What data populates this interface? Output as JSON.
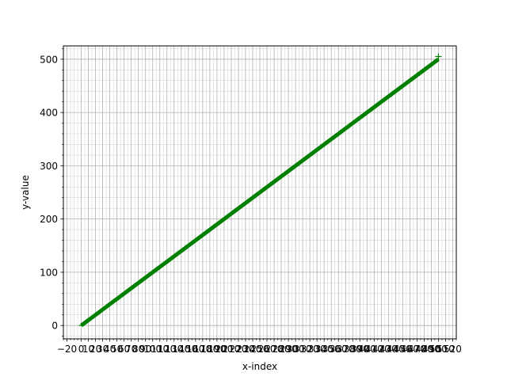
{
  "chart_data": {
    "type": "line",
    "title": "",
    "xlabel": "x-index",
    "ylabel": "y-value",
    "xlim": [
      -25,
      525
    ],
    "ylim": [
      -25,
      525
    ],
    "x_major_ticks": [
      -20,
      0,
      10,
      20,
      30,
      40,
      50,
      60,
      70,
      80,
      90,
      100,
      110,
      120,
      130,
      140,
      150,
      160,
      170,
      180,
      190,
      200,
      210,
      220,
      230,
      240,
      250,
      260,
      270,
      280,
      290,
      300,
      310,
      320,
      330,
      340,
      350,
      360,
      370,
      380,
      390,
      400,
      410,
      420,
      430,
      440,
      450,
      460,
      470,
      480,
      490,
      500,
      510,
      520
    ],
    "x_tick_labels": [
      "-20",
      "0",
      "10",
      "20",
      "30",
      "40",
      "50",
      "60",
      "70",
      "80",
      "90",
      "100",
      "110",
      "120",
      "130",
      "140",
      "150",
      "160",
      "170",
      "180",
      "190",
      "200",
      "210",
      "220",
      "230",
      "240",
      "250",
      "260",
      "270",
      "280",
      "290",
      "300",
      "310",
      "320",
      "330",
      "340",
      "350",
      "360",
      "370",
      "380",
      "390",
      "400",
      "410",
      "420",
      "430",
      "440",
      "450",
      "460",
      "470",
      "480",
      "490",
      "500",
      "510",
      "520"
    ],
    "y_major_ticks": [
      0,
      100,
      200,
      300,
      400,
      500
    ],
    "y_tick_labels": [
      "0",
      "100",
      "200",
      "300",
      "400",
      "500"
    ],
    "minor_tick_step": 5,
    "grid": true,
    "series": [
      {
        "x": [
          0,
          500
        ],
        "y": [
          0,
          500
        ],
        "color": "#008000",
        "marker": "+"
      }
    ],
    "last_point": {
      "x": 500,
      "y": 505
    }
  }
}
